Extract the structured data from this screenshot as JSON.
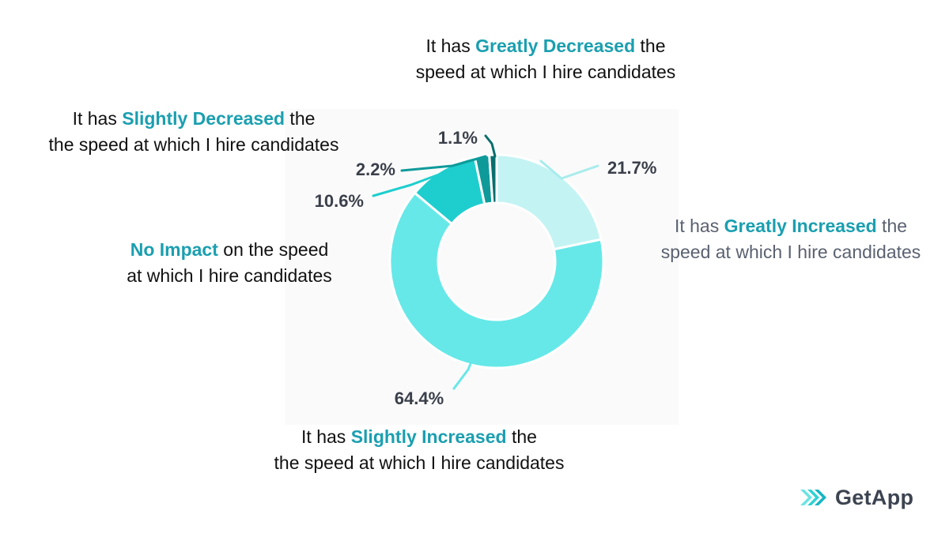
{
  "chart_data": {
    "type": "pie",
    "style": "donut",
    "slices": [
      {
        "category": "Greatly Increased",
        "value": 21.7,
        "pct_label": "21.7%",
        "color": "#c4f3f3"
      },
      {
        "category": "Slightly Increased",
        "value": 64.4,
        "pct_label": "64.4%",
        "color": "#66e8e8"
      },
      {
        "category": "No Impact",
        "value": 10.6,
        "pct_label": "10.6%",
        "color": "#1ecece"
      },
      {
        "category": "Slightly Decreased",
        "value": 2.2,
        "pct_label": "2.2%",
        "color": "#0f9a9a"
      },
      {
        "category": "Greatly Decreased",
        "value": 1.1,
        "pct_label": "1.1%",
        "color": "#0a6e6e"
      }
    ]
  },
  "labels": {
    "greatly_decreased": {
      "pre": "It has ",
      "hl": "Greatly Decreased",
      "post": " the",
      "line2": "speed at which I hire candidates"
    },
    "slightly_decreased": {
      "pre": "It has ",
      "hl": "Slightly Decreased",
      "post": " the",
      "line2": "the speed at which I hire candidates"
    },
    "no_impact": {
      "pre": "",
      "hl": "No Impact",
      "post": " on the speed",
      "line2": "at which I hire candidates"
    },
    "greatly_increased": {
      "pre": "It has ",
      "hl": "Greatly Increased",
      "post": " the",
      "line2": "speed at which I hire candidates"
    },
    "slightly_increased": {
      "pre": "It has ",
      "hl": "Slightly Increased",
      "post": " the",
      "line2": "the speed at which I hire candidates"
    }
  },
  "brand": {
    "name": "GetApp",
    "accent": "#1ecece",
    "text_color": "#3d4451"
  }
}
